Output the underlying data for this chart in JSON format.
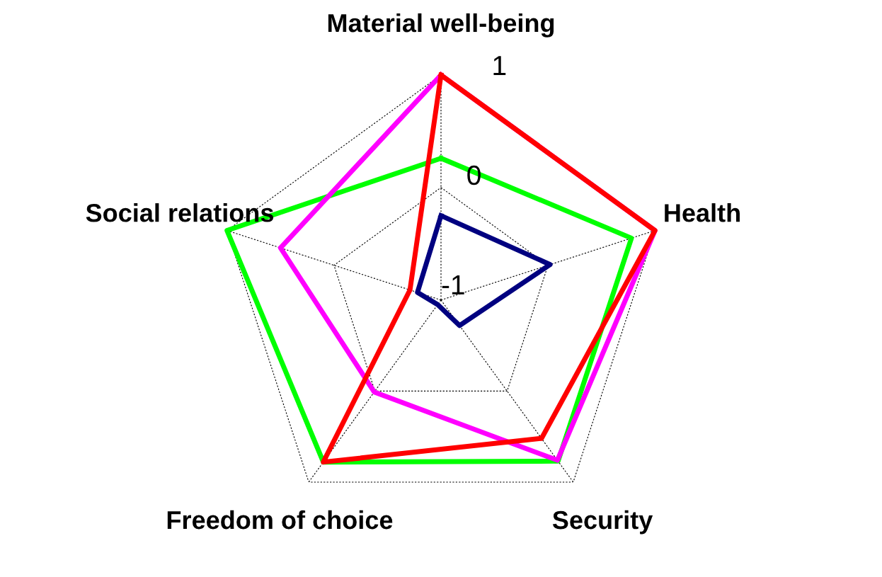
{
  "chart_data": {
    "type": "radar",
    "categories": [
      "Material well-being",
      "Health",
      "Security",
      "Freedom of choice",
      "Social relations"
    ],
    "ylim": [
      -1,
      1
    ],
    "yticks": [
      -1,
      0,
      1
    ],
    "grid": true,
    "legend": false,
    "marker": "none",
    "line_style": "solid",
    "series": [
      {
        "color": "#000080",
        "values": [
          -0.25,
          0.02,
          -0.72,
          -0.95,
          -0.78
        ]
      },
      {
        "color": "#00ff00",
        "values": [
          0.26,
          0.78,
          0.77,
          0.78,
          1.0
        ]
      },
      {
        "color": "#ff00ff",
        "values": [
          1.0,
          1.0,
          0.76,
          0.01,
          0.5
        ]
      },
      {
        "color": "#ff0000",
        "values": [
          1.0,
          1.0,
          0.52,
          0.78,
          -0.71
        ]
      }
    ]
  }
}
